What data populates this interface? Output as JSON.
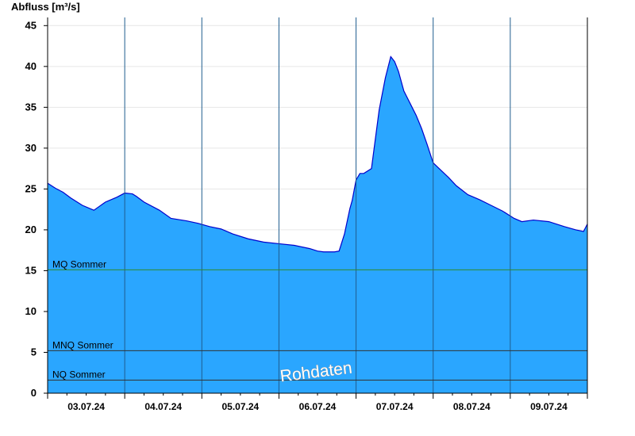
{
  "chart_data": {
    "type": "area",
    "ylabel": "Abfluss [m³/s]",
    "ylim": [
      0,
      46
    ],
    "yticks": [
      0,
      5,
      10,
      15,
      20,
      25,
      30,
      35,
      40,
      45
    ],
    "xlim": [
      0,
      7
    ],
    "x_unit": "days",
    "day_labels": [
      "03.07.24",
      "04.07.24",
      "05.07.24",
      "06.07.24",
      "07.07.24",
      "08.07.24",
      "09.07.24"
    ],
    "grid": true,
    "colors": {
      "fill": "#2aa6ff",
      "line": "#0000cc",
      "mq": "#2e8b2e",
      "mnq": "#333333",
      "nq": "#333333"
    },
    "reference_lines": [
      {
        "name": "MQ Sommer",
        "value": 15.1
      },
      {
        "name": "MNQ Sommer",
        "value": 5.2
      },
      {
        "name": "NQ Sommer",
        "value": 1.6
      }
    ],
    "watermark": "Rohdaten",
    "series": [
      {
        "x": [
          0,
          0.1,
          0.2,
          0.3,
          0.45,
          0.6,
          0.75,
          0.9,
          1.0,
          1.1,
          1.15,
          1.25,
          1.45,
          1.6,
          1.8,
          1.95,
          2.1,
          2.25,
          2.4,
          2.6,
          2.8,
          3.0,
          3.2,
          3.4,
          3.5,
          3.58,
          3.65,
          3.72,
          3.78,
          3.85,
          3.92,
          3.95,
          4.0,
          4.05,
          4.1,
          4.2,
          4.3,
          4.38,
          4.45,
          4.5,
          4.55,
          4.62,
          4.7,
          4.78,
          4.85,
          4.92,
          5.0,
          5.1,
          5.2,
          5.3,
          5.45,
          5.6,
          5.75,
          5.9,
          6.05,
          6.15,
          6.3,
          6.5,
          6.7,
          6.85,
          6.95,
          7.0
        ],
        "values": [
          25.7,
          25.1,
          24.6,
          23.9,
          23.0,
          22.4,
          23.4,
          24.0,
          24.5,
          24.4,
          24.1,
          23.4,
          22.4,
          21.4,
          21.1,
          20.8,
          20.4,
          20.1,
          19.5,
          18.9,
          18.5,
          18.3,
          18.1,
          17.7,
          17.4,
          17.3,
          17.3,
          17.3,
          17.4,
          19.5,
          22.6,
          23.6,
          26.1,
          26.9,
          26.9,
          27.5,
          34.7,
          38.6,
          41.2,
          40.6,
          39.4,
          37.0,
          35.5,
          34.0,
          32.4,
          30.5,
          28.2,
          27.3,
          26.4,
          25.4,
          24.3,
          23.7,
          23.0,
          22.3,
          21.4,
          21.0,
          21.2,
          21.0,
          20.4,
          20.0,
          19.8,
          20.7
        ]
      }
    ]
  }
}
